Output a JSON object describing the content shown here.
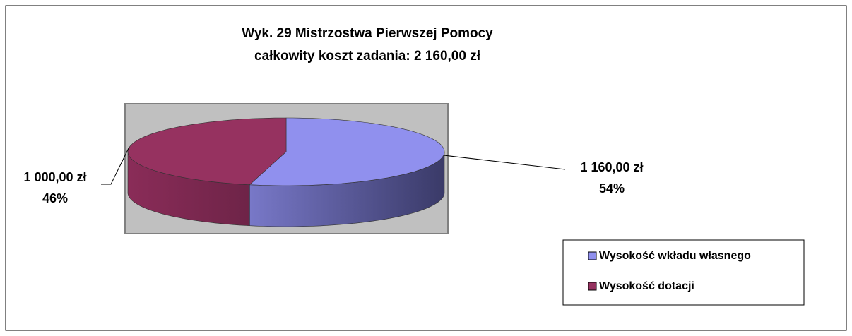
{
  "chart_data": {
    "type": "pie",
    "title": "Wyk. 29 Mistrzostwa Pierwszej Pomocy",
    "subtitle": "całkowity koszt zadania: 2 160,00 zł",
    "categories": [
      "Wysokość wkładu własnego",
      "Wysokość dotacji"
    ],
    "values": [
      1160,
      1000
    ],
    "value_labels": [
      "1 160,00 zł",
      "1 000,00 zł"
    ],
    "percent_labels": [
      "54%",
      "46%"
    ],
    "colors": [
      "#9090ee",
      "#963260"
    ],
    "legend": "right"
  }
}
